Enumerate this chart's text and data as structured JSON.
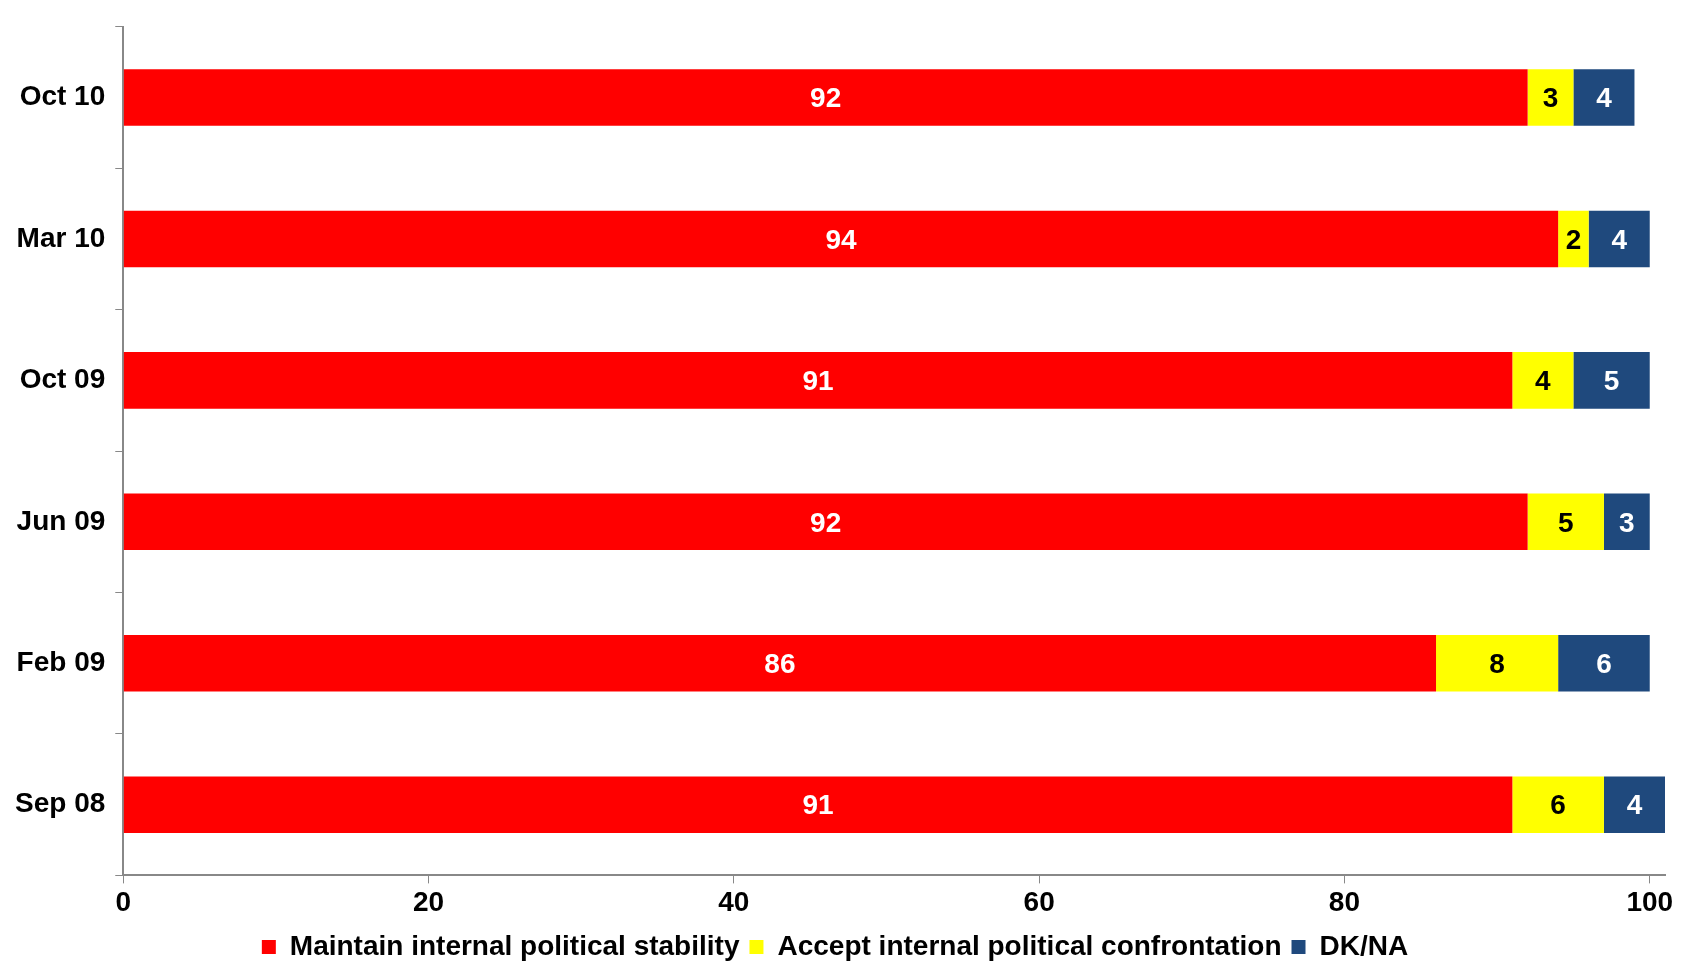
{
  "chart_data": {
    "type": "bar",
    "orientation": "horizontal",
    "stacked": true,
    "categories": [
      "Oct 10",
      "Mar 10",
      "Oct 09",
      "Jun 09",
      "Feb 09",
      "Sep 08"
    ],
    "series": [
      {
        "name": "Maintain internal political stability",
        "color": "#ff0000",
        "values": [
          92,
          94,
          91,
          92,
          86,
          91
        ]
      },
      {
        "name": "Accept internal political confrontation",
        "color": "#ffff00",
        "values": [
          3,
          2,
          4,
          5,
          8,
          6
        ]
      },
      {
        "name": "DK/NA",
        "color": "#1f497d",
        "values": [
          4,
          4,
          5,
          3,
          6,
          4
        ]
      }
    ],
    "xlim": [
      0,
      101
    ],
    "xticks": [
      0,
      20,
      40,
      60,
      80,
      100
    ],
    "grid": false,
    "legend": "bottom",
    "data_labels": true
  }
}
